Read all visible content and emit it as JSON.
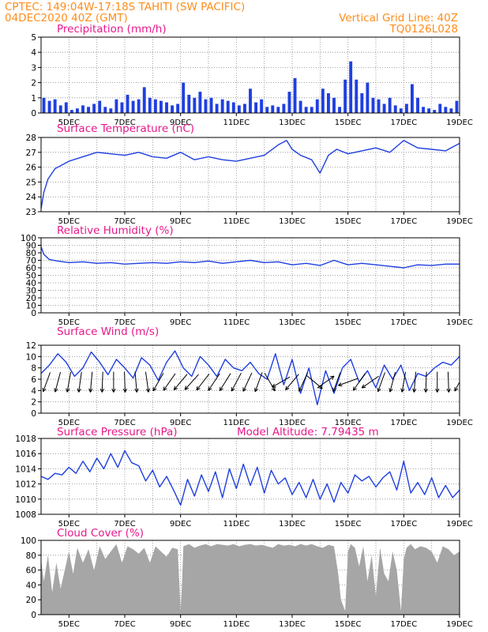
{
  "header": {
    "title": "CPTEC:   149:04W-17:18S   TAHITI (SW PACIFIC)",
    "date": "04DEC2020 40Z (GMT)",
    "grid_note": "Vertical Grid Line: 40Z",
    "code": "TQ0126L028"
  },
  "colors": {
    "header": "#ff8c1a",
    "panel_title": "#e8198b",
    "series": "#1f3fe0",
    "cloud": "#a6a6a6",
    "wind_arrow": "#000000",
    "grid": "#888888"
  },
  "x_tick_labels": [
    "5DEC",
    "7DEC",
    "9DEC",
    "11DEC",
    "13DEC",
    "15DEC",
    "17DEC",
    "19DEC"
  ],
  "chart_data": [
    {
      "id": "precipitation",
      "type": "bar",
      "title": "Precipitation (mm/h)",
      "ylim": [
        0,
        5
      ],
      "yticks": [
        0,
        1,
        2,
        3,
        4,
        5
      ],
      "x_range_days": [
        4,
        19
      ],
      "grid": true,
      "x": [
        4.1,
        4.3,
        4.5,
        4.7,
        4.9,
        5.1,
        5.3,
        5.5,
        5.7,
        5.9,
        6.1,
        6.3,
        6.5,
        6.7,
        6.9,
        7.1,
        7.3,
        7.5,
        7.7,
        7.9,
        8.1,
        8.3,
        8.5,
        8.7,
        8.9,
        9.1,
        9.3,
        9.5,
        9.7,
        9.9,
        10.1,
        10.3,
        10.5,
        10.7,
        10.9,
        11.1,
        11.3,
        11.5,
        11.7,
        11.9,
        12.1,
        12.3,
        12.5,
        12.7,
        12.9,
        13.1,
        13.3,
        13.5,
        13.7,
        13.9,
        14.1,
        14.3,
        14.5,
        14.7,
        14.9,
        15.1,
        15.3,
        15.5,
        15.7,
        15.9,
        16.1,
        16.3,
        16.5,
        16.7,
        16.9,
        17.1,
        17.3,
        17.5,
        17.7,
        17.9,
        18.1,
        18.3,
        18.5,
        18.7,
        18.9
      ],
      "values": [
        1.0,
        0.8,
        0.9,
        0.5,
        0.7,
        0.2,
        0.3,
        0.5,
        0.4,
        0.6,
        0.8,
        0.4,
        0.3,
        0.9,
        0.7,
        1.2,
        0.8,
        0.9,
        1.7,
        1.0,
        0.9,
        0.8,
        0.7,
        0.5,
        0.6,
        2.0,
        1.2,
        1.0,
        1.4,
        0.9,
        1.0,
        0.6,
        0.9,
        0.8,
        0.7,
        0.5,
        0.6,
        1.6,
        0.7,
        0.9,
        0.4,
        0.5,
        0.4,
        0.6,
        1.4,
        2.3,
        0.8,
        0.4,
        0.4,
        0.9,
        1.6,
        1.3,
        1.0,
        0.4,
        2.2,
        3.4,
        2.2,
        1.3,
        2.0,
        1.0,
        0.9,
        0.6,
        1.0,
        0.5,
        0.3,
        0.6,
        1.9,
        1.0,
        0.4,
        0.3,
        0.2,
        0.6,
        0.4,
        0.3,
        0.8
      ]
    },
    {
      "id": "surface_temperature",
      "type": "line",
      "title": "Surface Temperature (nC)",
      "ylim": [
        23,
        28
      ],
      "yticks": [
        23,
        24,
        25,
        26,
        27,
        28
      ],
      "x_range_days": [
        4,
        19
      ],
      "grid": true,
      "x": [
        4.0,
        4.1,
        4.25,
        4.5,
        5.0,
        5.5,
        6.0,
        6.5,
        7.0,
        7.5,
        8.0,
        8.5,
        9.0,
        9.5,
        10.0,
        10.5,
        11.0,
        11.5,
        12.0,
        12.5,
        12.8,
        13.0,
        13.3,
        13.7,
        14.0,
        14.3,
        14.6,
        15.0,
        15.5,
        16.0,
        16.5,
        17.0,
        17.5,
        18.0,
        18.5,
        19.0
      ],
      "values": [
        23.2,
        24.3,
        25.2,
        25.9,
        26.4,
        26.7,
        27.0,
        26.9,
        26.8,
        27.0,
        26.7,
        26.6,
        27.0,
        26.5,
        26.7,
        26.5,
        26.4,
        26.6,
        26.8,
        27.5,
        27.8,
        27.2,
        26.8,
        26.5,
        25.6,
        26.8,
        27.2,
        26.9,
        27.1,
        27.3,
        27.0,
        27.8,
        27.3,
        27.2,
        27.1,
        27.6
      ]
    },
    {
      "id": "relative_humidity",
      "type": "line",
      "title": "Relative Humidity (%)",
      "ylim": [
        0,
        100
      ],
      "yticks": [
        0,
        10,
        20,
        30,
        40,
        50,
        60,
        70,
        80,
        90,
        100
      ],
      "x_range_days": [
        4,
        19
      ],
      "grid": true,
      "x": [
        4.0,
        4.1,
        4.3,
        4.6,
        5.0,
        5.5,
        6.0,
        6.5,
        7.0,
        7.5,
        8.0,
        8.5,
        9.0,
        9.5,
        10.0,
        10.5,
        11.0,
        11.5,
        12.0,
        12.5,
        13.0,
        13.5,
        14.0,
        14.5,
        15.0,
        15.5,
        16.0,
        16.5,
        17.0,
        17.5,
        18.0,
        18.5,
        19.0
      ],
      "values": [
        88,
        78,
        71,
        69,
        67,
        68,
        66,
        67,
        65,
        66,
        67,
        66,
        68,
        67,
        69,
        66,
        68,
        70,
        67,
        68,
        64,
        66,
        63,
        70,
        64,
        66,
        64,
        62,
        60,
        64,
        63,
        65,
        65
      ]
    },
    {
      "id": "surface_wind",
      "type": "line",
      "title": "Surface Wind (m/s)",
      "ylim": [
        0,
        12
      ],
      "yticks": [
        0,
        2,
        4,
        6,
        8,
        10,
        12
      ],
      "x_range_days": [
        4,
        19
      ],
      "grid": true,
      "x": [
        4.0,
        4.3,
        4.6,
        4.9,
        5.2,
        5.5,
        5.8,
        6.1,
        6.4,
        6.7,
        7.0,
        7.3,
        7.6,
        7.9,
        8.2,
        8.5,
        8.8,
        9.1,
        9.4,
        9.7,
        10.0,
        10.3,
        10.6,
        10.9,
        11.2,
        11.5,
        11.8,
        12.1,
        12.4,
        12.7,
        13.0,
        13.3,
        13.6,
        13.9,
        14.2,
        14.5,
        14.8,
        15.1,
        15.4,
        15.7,
        16.0,
        16.3,
        16.6,
        16.9,
        17.2,
        17.5,
        17.8,
        18.1,
        18.4,
        18.7,
        19.0
      ],
      "values": [
        7.0,
        8.5,
        10.5,
        9.0,
        6.5,
        8.0,
        10.8,
        9.0,
        6.8,
        9.5,
        8.0,
        6.2,
        9.8,
        8.5,
        5.8,
        9.0,
        11.0,
        8.0,
        6.5,
        10.0,
        8.5,
        6.5,
        9.5,
        8.0,
        7.5,
        9.0,
        7.0,
        6.0,
        10.5,
        5.0,
        9.5,
        3.5,
        8.0,
        1.5,
        7.5,
        3.5,
        8.0,
        9.5,
        5.5,
        7.5,
        4.5,
        8.5,
        6.0,
        8.5,
        4.0,
        7.0,
        6.5,
        8.0,
        9.0,
        8.5,
        10.0
      ],
      "arrow_x": [
        4.2,
        4.6,
        5.0,
        5.4,
        5.8,
        6.2,
        6.6,
        7.0,
        7.4,
        7.8,
        8.2,
        8.6,
        9.0,
        9.4,
        9.8,
        10.2,
        10.6,
        11.0,
        11.4,
        11.8,
        12.2,
        12.6,
        13.0,
        13.4,
        13.8,
        14.2,
        14.6,
        15.0,
        15.4,
        15.8,
        16.2,
        16.6,
        17.0,
        17.4,
        17.8,
        18.2,
        18.6,
        19.0
      ],
      "arrow_dir_deg": [
        250,
        255,
        260,
        262,
        265,
        268,
        270,
        272,
        275,
        278,
        240,
        235,
        230,
        228,
        232,
        236,
        238,
        242,
        245,
        250,
        300,
        210,
        230,
        245,
        320,
        35,
        250,
        200,
        235,
        215,
        250,
        255,
        260,
        265,
        268,
        270,
        272,
        242
      ]
    },
    {
      "id": "surface_pressure",
      "type": "line",
      "title": "Surface Pressure (hPa)",
      "annotation": "Model Altitude: 7.79435 m",
      "ylim": [
        1008,
        1018
      ],
      "yticks": [
        1008,
        1010,
        1012,
        1014,
        1016,
        1018
      ],
      "x_range_days": [
        4,
        19
      ],
      "grid": true,
      "x": [
        4.0,
        4.25,
        4.5,
        4.75,
        5.0,
        5.25,
        5.5,
        5.75,
        6.0,
        6.25,
        6.5,
        6.75,
        7.0,
        7.25,
        7.5,
        7.75,
        8.0,
        8.25,
        8.5,
        8.75,
        9.0,
        9.25,
        9.5,
        9.75,
        10.0,
        10.25,
        10.5,
        10.75,
        11.0,
        11.25,
        11.5,
        11.75,
        12.0,
        12.25,
        12.5,
        12.75,
        13.0,
        13.25,
        13.5,
        13.75,
        14.0,
        14.25,
        14.5,
        14.75,
        15.0,
        15.25,
        15.5,
        15.75,
        16.0,
        16.25,
        16.5,
        16.75,
        17.0,
        17.25,
        17.5,
        17.75,
        18.0,
        18.25,
        18.5,
        18.75,
        19.0
      ],
      "values": [
        1013.0,
        1012.6,
        1013.4,
        1013.2,
        1014.2,
        1013.4,
        1015.0,
        1013.6,
        1015.4,
        1014.0,
        1016.0,
        1014.2,
        1016.4,
        1014.8,
        1014.4,
        1012.4,
        1013.8,
        1011.6,
        1013.0,
        1011.2,
        1009.2,
        1012.6,
        1010.4,
        1013.2,
        1011.0,
        1013.6,
        1010.2,
        1014.0,
        1011.4,
        1014.6,
        1011.8,
        1014.2,
        1010.8,
        1013.8,
        1012.0,
        1012.8,
        1010.6,
        1012.2,
        1010.2,
        1012.6,
        1010.0,
        1012.0,
        1009.6,
        1012.2,
        1010.8,
        1013.2,
        1012.4,
        1013.0,
        1011.6,
        1012.8,
        1013.6,
        1011.2,
        1015.0,
        1010.8,
        1012.2,
        1010.6,
        1012.8,
        1010.2,
        1011.8,
        1010.2,
        1011.2
      ]
    },
    {
      "id": "cloud_cover",
      "type": "area",
      "title": "Cloud Cover (%)",
      "ylim": [
        0,
        100
      ],
      "yticks": [
        0,
        20,
        40,
        60,
        80,
        100
      ],
      "x_range_days": [
        4,
        19
      ],
      "grid": true,
      "x": [
        4.0,
        4.1,
        4.25,
        4.4,
        4.55,
        4.7,
        4.85,
        5.0,
        5.15,
        5.3,
        5.5,
        5.7,
        5.9,
        6.1,
        6.3,
        6.5,
        6.7,
        6.9,
        7.1,
        7.3,
        7.5,
        7.7,
        7.9,
        8.1,
        8.3,
        8.5,
        8.7,
        8.9,
        9.0,
        9.05,
        9.1,
        9.3,
        9.5,
        9.7,
        9.9,
        10.1,
        10.3,
        10.5,
        10.7,
        10.9,
        11.1,
        11.3,
        11.5,
        11.7,
        11.9,
        12.1,
        12.3,
        12.5,
        12.7,
        12.9,
        13.1,
        13.3,
        13.5,
        13.7,
        13.9,
        14.1,
        14.3,
        14.5,
        14.65,
        14.75,
        14.9,
        15.0,
        15.1,
        15.25,
        15.4,
        15.55,
        15.7,
        15.85,
        16.0,
        16.15,
        16.3,
        16.45,
        16.6,
        16.75,
        16.9,
        17.0,
        17.1,
        17.25,
        17.4,
        17.6,
        17.8,
        18.0,
        18.2,
        18.4,
        18.6,
        18.8,
        19.0
      ],
      "values": [
        75,
        45,
        80,
        30,
        70,
        35,
        60,
        85,
        55,
        90,
        70,
        88,
        60,
        92,
        75,
        85,
        95,
        70,
        92,
        88,
        82,
        90,
        70,
        92,
        85,
        78,
        90,
        88,
        5,
        40,
        92,
        95,
        90,
        93,
        95,
        92,
        95,
        94,
        93,
        95,
        92,
        94,
        95,
        93,
        94,
        92,
        90,
        95,
        93,
        94,
        92,
        95,
        93,
        95,
        92,
        90,
        94,
        92,
        55,
        20,
        5,
        85,
        95,
        90,
        65,
        92,
        45,
        80,
        25,
        90,
        55,
        45,
        85,
        60,
        5,
        75,
        90,
        95,
        88,
        92,
        90,
        85,
        70,
        92,
        88,
        80,
        85
      ]
    }
  ]
}
